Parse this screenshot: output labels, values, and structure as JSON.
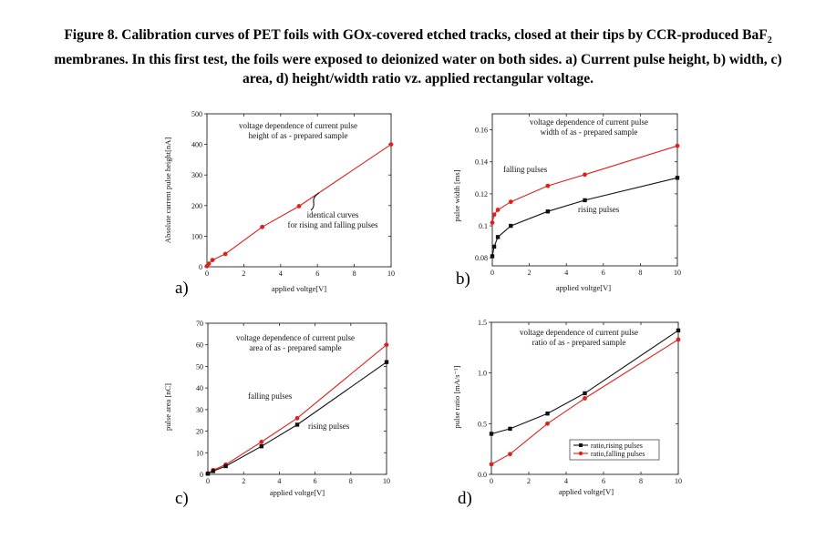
{
  "caption": {
    "line1_main": "Figure 8. Calibration curves of PET foils with GOx-covered etched tracks, closed at their tips by CCR-produced BaF",
    "line1_sub": "2",
    "line2": "membranes. In this first test, the foils were exposed to deionized water on both sides. a) Current pulse height, b) width, c)",
    "line3": "area, d) height/width ratio vz. applied rectangular voltage."
  },
  "colors": {
    "rising": "#111111",
    "falling": "#e0201c",
    "axis": "#222222"
  },
  "chart_data": [
    {
      "id": "a",
      "panel_label": "a)",
      "type": "line",
      "xlabel": "applied voltge[V]",
      "ylabel": "Absolute current pulse height[nA]",
      "xlim": [
        0,
        10
      ],
      "ylim": [
        0,
        500
      ],
      "xticks": [
        0,
        2,
        4,
        6,
        8,
        10
      ],
      "yticks": [
        0,
        100,
        200,
        300,
        400,
        500
      ],
      "grid": false,
      "series": [
        {
          "color": "#e0201c",
          "marker": "circle",
          "x": [
            0,
            0.1,
            0.3,
            1,
            3,
            5,
            10
          ],
          "y": [
            2,
            10,
            22,
            42,
            130,
            198,
            400
          ]
        }
      ],
      "annotations": [
        {
          "lines": [
            "voltage dependence of current pulse",
            "height of as - prepared sample"
          ]
        },
        {
          "lines": [
            "identical curves",
            "for rising and falling pulses"
          ]
        }
      ]
    },
    {
      "id": "b",
      "panel_label": "b)",
      "type": "line",
      "xlabel": "applied voltge[V]",
      "ylabel": "pulse width [ms]",
      "xlim": [
        0,
        10
      ],
      "ylim": [
        0.075,
        0.17
      ],
      "xticks": [
        0,
        2,
        4,
        6,
        8,
        10
      ],
      "yticks": [
        0.08,
        0.1,
        0.12,
        0.14,
        0.16
      ],
      "grid": false,
      "series": [
        {
          "color": "#e0201c",
          "marker": "circle",
          "x": [
            0,
            0.1,
            0.3,
            1,
            3,
            5,
            10
          ],
          "y": [
            0.102,
            0.107,
            0.11,
            0.115,
            0.125,
            0.132,
            0.15
          ]
        },
        {
          "color": "#111111",
          "marker": "square",
          "x": [
            0,
            0.1,
            0.3,
            1,
            3,
            5,
            10
          ],
          "y": [
            0.081,
            0.087,
            0.093,
            0.1,
            0.109,
            0.116,
            0.13
          ]
        }
      ],
      "annotations": [
        {
          "lines": [
            "voltage dependence of current pulse",
            "width of as - prepared sample"
          ]
        },
        {
          "lines": [
            "falling pulses"
          ]
        },
        {
          "lines": [
            "rising pulses"
          ]
        }
      ]
    },
    {
      "id": "c",
      "panel_label": "c)",
      "type": "line",
      "xlabel": "applied voltge[V]",
      "ylabel": "pulse area [nC]",
      "xlim": [
        0,
        10
      ],
      "ylim": [
        0,
        70
      ],
      "xticks": [
        0,
        2,
        4,
        6,
        8,
        10
      ],
      "yticks": [
        0,
        10,
        20,
        30,
        40,
        50,
        60,
        70
      ],
      "grid": false,
      "series": [
        {
          "color": "#e0201c",
          "marker": "circle",
          "x": [
            0,
            0.3,
            1,
            3,
            5,
            10
          ],
          "y": [
            0.5,
            2,
            4.5,
            15,
            26,
            60
          ]
        },
        {
          "color": "#111111",
          "marker": "square",
          "x": [
            0,
            0.3,
            1,
            3,
            5,
            10
          ],
          "y": [
            0.3,
            1.5,
            3.8,
            13,
            23,
            52
          ]
        }
      ],
      "annotations": [
        {
          "lines": [
            "voltage dependence of current pulse",
            "area of as - prepared sample"
          ]
        },
        {
          "lines": [
            "falling pulses"
          ]
        },
        {
          "lines": [
            "rising pulses"
          ]
        }
      ]
    },
    {
      "id": "d",
      "panel_label": "d)",
      "type": "line",
      "xlabel": "applied voltge[V]",
      "ylabel": "pulse ratio [mA/s⁻¹]",
      "xlim": [
        0,
        10
      ],
      "ylim": [
        0,
        1.5
      ],
      "xticks": [
        0,
        2,
        4,
        6,
        8,
        10
      ],
      "yticks": [
        0.0,
        0.5,
        1.0,
        1.5
      ],
      "ytick_labels": [
        "0.0",
        "0.5",
        "1.0",
        "1.5"
      ],
      "grid": false,
      "legend": "bottom-right",
      "series": [
        {
          "name": "ratio,rising pulses",
          "color": "#111111",
          "marker": "square",
          "x": [
            0,
            1,
            3,
            5,
            10
          ],
          "y": [
            0.4,
            0.45,
            0.6,
            0.8,
            1.42
          ]
        },
        {
          "name": "ratio,falling pulses",
          "color": "#e0201c",
          "marker": "circle",
          "x": [
            0,
            1,
            3,
            5,
            10
          ],
          "y": [
            0.1,
            0.2,
            0.5,
            0.75,
            1.33
          ]
        }
      ],
      "annotations": [
        {
          "lines": [
            "voltage dependence of current pulse",
            "ratio of as - prepared sample"
          ]
        }
      ]
    }
  ]
}
